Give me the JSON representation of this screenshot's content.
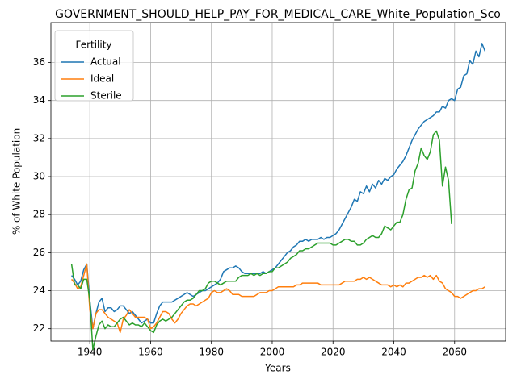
{
  "chart_data": {
    "type": "line",
    "title": "GOVERNMENT_SHOULD_HELP_PAY_FOR_MEDICAL_CARE_White_Population_Sco",
    "x_label": "Years",
    "y_label": "% of White Population",
    "legend_title": "Fertility",
    "legend_loc": "upper left",
    "grid": true,
    "xlim": [
      1927.2,
      2076.8
    ],
    "ylim": [
      21.35,
      38.1
    ],
    "xticks": [
      1940,
      1960,
      1980,
      2000,
      2020,
      2040,
      2060
    ],
    "yticks": [
      22,
      24,
      26,
      28,
      30,
      32,
      34,
      36
    ],
    "x": [
      1934,
      1935,
      1936,
      1937,
      1938,
      1939,
      1940,
      1941,
      1942,
      1943,
      1944,
      1945,
      1946,
      1947,
      1948,
      1949,
      1950,
      1951,
      1952,
      1953,
      1954,
      1955,
      1956,
      1957,
      1958,
      1959,
      1960,
      1961,
      1962,
      1963,
      1964,
      1965,
      1966,
      1967,
      1968,
      1969,
      1970,
      1971,
      1972,
      1973,
      1974,
      1975,
      1976,
      1977,
      1978,
      1979,
      1980,
      1981,
      1982,
      1983,
      1984,
      1985,
      1986,
      1987,
      1988,
      1989,
      1990,
      1991,
      1992,
      1993,
      1994,
      1995,
      1996,
      1997,
      1998,
      1999,
      2000,
      2001,
      2002,
      2003,
      2004,
      2005,
      2006,
      2007,
      2008,
      2009,
      2010,
      2011,
      2012,
      2013,
      2014,
      2015,
      2016,
      2017,
      2018,
      2019,
      2020,
      2021,
      2022,
      2023,
      2024,
      2025,
      2026,
      2027,
      2028,
      2029,
      2030,
      2031,
      2032,
      2033,
      2034,
      2035,
      2036,
      2037,
      2038,
      2039,
      2040,
      2041,
      2042,
      2043,
      2044,
      2045,
      2046,
      2047,
      2048,
      2049,
      2050,
      2051,
      2052,
      2053,
      2054,
      2055,
      2056,
      2057,
      2058,
      2059,
      2060,
      2061,
      2062,
      2063,
      2064,
      2065,
      2066,
      2067,
      2068,
      2069,
      2070
    ],
    "series": [
      {
        "name": "Actual",
        "color": "#1f77b4",
        "values": [
          24.8,
          24.6,
          24.3,
          24.5,
          25.1,
          25.4,
          23.5,
          22.0,
          22.8,
          23.4,
          23.6,
          22.9,
          23.1,
          23.1,
          22.9,
          23.0,
          23.2,
          23.2,
          23.0,
          22.8,
          22.9,
          22.7,
          22.5,
          22.3,
          22.4,
          22.5,
          22.3,
          22.3,
          22.8,
          23.2,
          23.4,
          23.4,
          23.4,
          23.4,
          23.5,
          23.6,
          23.7,
          23.8,
          23.9,
          23.8,
          23.7,
          23.8,
          23.9,
          24.0,
          24.0,
          24.1,
          24.2,
          24.3,
          24.4,
          24.6,
          25.0,
          25.1,
          25.2,
          25.2,
          25.3,
          25.2,
          25.0,
          24.9,
          24.9,
          24.9,
          24.9,
          24.9,
          24.9,
          25.0,
          24.9,
          25.0,
          25.1,
          25.2,
          25.4,
          25.6,
          25.8,
          26.0,
          26.1,
          26.3,
          26.4,
          26.6,
          26.6,
          26.7,
          26.6,
          26.7,
          26.7,
          26.7,
          26.8,
          26.7,
          26.8,
          26.8,
          26.9,
          27.0,
          27.2,
          27.5,
          27.8,
          28.1,
          28.4,
          28.8,
          28.7,
          29.2,
          29.1,
          29.5,
          29.2,
          29.6,
          29.4,
          29.8,
          29.6,
          29.9,
          29.8,
          30.0,
          30.1,
          30.4,
          30.6,
          30.8,
          31.1,
          31.5,
          31.9,
          32.2,
          32.5,
          32.7,
          32.9,
          33.0,
          33.1,
          33.2,
          33.4,
          33.4,
          33.7,
          33.6,
          34.0,
          34.1,
          34.0,
          34.6,
          34.7,
          35.3,
          35.4,
          36.1,
          35.9,
          36.6,
          36.3,
          37.0,
          36.6
        ]
      },
      {
        "name": "Ideal",
        "color": "#ff7f0e",
        "values": [
          24.6,
          24.4,
          24.1,
          24.2,
          24.8,
          25.4,
          23.0,
          22.0,
          22.8,
          23.0,
          23.0,
          22.8,
          22.6,
          22.5,
          22.4,
          22.3,
          21.8,
          22.5,
          22.7,
          23.0,
          22.8,
          22.6,
          22.6,
          22.6,
          22.6,
          22.5,
          22.0,
          22.1,
          22.3,
          22.6,
          22.9,
          22.9,
          22.8,
          22.5,
          22.3,
          22.5,
          22.8,
          23.0,
          23.2,
          23.3,
          23.3,
          23.2,
          23.3,
          23.4,
          23.5,
          23.6,
          23.9,
          24.0,
          23.9,
          23.9,
          24.0,
          24.1,
          24.0,
          23.8,
          23.8,
          23.8,
          23.7,
          23.7,
          23.7,
          23.7,
          23.7,
          23.8,
          23.9,
          23.9,
          23.9,
          24.0,
          24.0,
          24.1,
          24.2,
          24.2,
          24.2,
          24.2,
          24.2,
          24.2,
          24.3,
          24.3,
          24.4,
          24.4,
          24.4,
          24.4,
          24.4,
          24.4,
          24.3,
          24.3,
          24.3,
          24.3,
          24.3,
          24.3,
          24.3,
          24.4,
          24.5,
          24.5,
          24.5,
          24.5,
          24.6,
          24.6,
          24.7,
          24.6,
          24.7,
          24.6,
          24.5,
          24.4,
          24.3,
          24.3,
          24.3,
          24.2,
          24.3,
          24.2,
          24.3,
          24.2,
          24.4,
          24.4,
          24.5,
          24.6,
          24.7,
          24.7,
          24.8,
          24.7,
          24.8,
          24.6,
          24.8,
          24.5,
          24.4,
          24.1,
          24.0,
          23.9,
          23.7,
          23.7,
          23.6,
          23.7,
          23.8,
          23.9,
          24.0,
          24.0,
          24.1,
          24.1,
          24.2
        ]
      },
      {
        "name": "Sterile",
        "color": "#2ca02c",
        "values": [
          25.4,
          24.3,
          24.3,
          24.1,
          24.6,
          24.6,
          23.5,
          20.9,
          21.6,
          22.2,
          22.4,
          22.0,
          22.2,
          22.1,
          22.1,
          22.3,
          22.5,
          22.6,
          22.4,
          22.2,
          22.3,
          22.2,
          22.2,
          22.1,
          22.3,
          22.1,
          21.9,
          21.8,
          22.2,
          22.4,
          22.5,
          22.4,
          22.5,
          22.6,
          22.8,
          23.0,
          23.2,
          23.4,
          23.5,
          23.5,
          23.6,
          23.8,
          24.0,
          24.0,
          24.1,
          24.4,
          24.5,
          24.5,
          24.4,
          24.3,
          24.4,
          24.5,
          24.5,
          24.5,
          24.5,
          24.7,
          24.8,
          24.8,
          24.8,
          24.9,
          24.8,
          24.9,
          24.8,
          24.9,
          24.9,
          25.0,
          25.0,
          25.2,
          25.2,
          25.3,
          25.4,
          25.5,
          25.7,
          25.8,
          25.9,
          26.1,
          26.1,
          26.2,
          26.2,
          26.3,
          26.4,
          26.5,
          26.5,
          26.5,
          26.5,
          26.5,
          26.4,
          26.4,
          26.5,
          26.6,
          26.7,
          26.7,
          26.6,
          26.6,
          26.4,
          26.4,
          26.5,
          26.7,
          26.8,
          26.9,
          26.8,
          26.8,
          27.0,
          27.4,
          27.3,
          27.2,
          27.4,
          27.6,
          27.6,
          28.0,
          28.8,
          29.3,
          29.4,
          30.3,
          30.7,
          31.5,
          31.1,
          30.9,
          31.3,
          32.2,
          32.4,
          31.9,
          29.5,
          30.5,
          29.8,
          27.5,
          null,
          null,
          null,
          null,
          null,
          null,
          null,
          null,
          null,
          null,
          null
        ]
      }
    ]
  }
}
